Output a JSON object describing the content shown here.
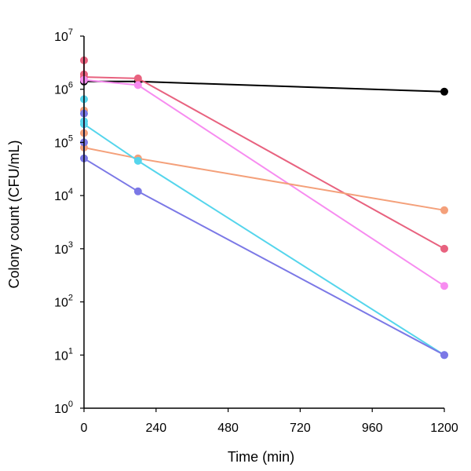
{
  "chart_data": {
    "type": "line",
    "title": "",
    "xlabel": "Time (min)",
    "ylabel": "Colony count (CFU/mL)",
    "xlim": [
      0,
      1200
    ],
    "ylim": [
      1,
      10000000
    ],
    "yscale": "log",
    "grid": false,
    "x_ticks": [
      0,
      240,
      480,
      720,
      960,
      1200
    ],
    "x_tick_labels": [
      "0",
      "240",
      "480",
      "720",
      "960",
      "1200"
    ],
    "y_ticks": [
      1,
      10,
      100,
      1000,
      10000,
      100000,
      1000000,
      10000000
    ],
    "y_tick_labels": [
      {
        "base": "10",
        "exp": "0"
      },
      {
        "base": "10",
        "exp": "1"
      },
      {
        "base": "10",
        "exp": "2"
      },
      {
        "base": "10",
        "exp": "3"
      },
      {
        "base": "10",
        "exp": "4"
      },
      {
        "base": "10",
        "exp": "5"
      },
      {
        "base": "10",
        "exp": "6"
      },
      {
        "base": "10",
        "exp": "7"
      }
    ],
    "series": [
      {
        "color": "#000000",
        "points": [
          [
            0,
            1400000
          ],
          [
            180,
            1400000
          ],
          [
            1200,
            900000
          ]
        ]
      },
      {
        "color": "#e8627f",
        "points": [
          [
            0,
            3500000
          ],
          [
            0,
            1900000
          ],
          [
            0,
            1700000
          ],
          [
            180,
            1600000
          ],
          [
            1200,
            1000
          ]
        ]
      },
      {
        "color": "#f78cf0",
        "points": [
          [
            0,
            1500000
          ],
          [
            180,
            1200000
          ],
          [
            1200,
            200
          ]
        ]
      },
      {
        "color": "#f4a07a",
        "points": [
          [
            0,
            400000
          ],
          [
            0,
            150000
          ],
          [
            0,
            80000
          ],
          [
            180,
            50000
          ],
          [
            1200,
            5300
          ]
        ]
      },
      {
        "color": "#55d5ec",
        "points": [
          [
            0,
            650000
          ],
          [
            0,
            250000
          ],
          [
            0,
            220000
          ],
          [
            180,
            45000
          ],
          [
            1200,
            10
          ]
        ]
      },
      {
        "color": "#7b78e6",
        "points": [
          [
            0,
            350000
          ],
          [
            0,
            100000
          ],
          [
            0,
            50000
          ],
          [
            180,
            12000
          ],
          [
            1200,
            10
          ]
        ]
      }
    ]
  }
}
